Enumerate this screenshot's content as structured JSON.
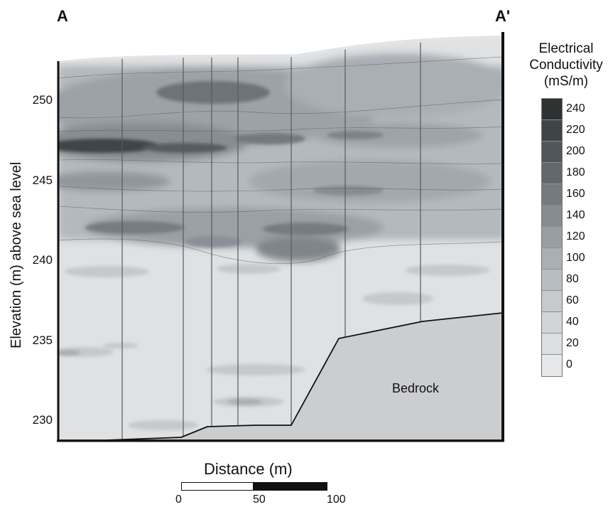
{
  "section_start": "A",
  "section_end": "A'",
  "y_axis": {
    "label": "Elevation (m) above sea level",
    "ticks": [
      "250",
      "245",
      "240",
      "235",
      "230"
    ]
  },
  "legend": {
    "title_line1": "Electrical",
    "title_line2": "Conductivity",
    "title_line3": "(mS/m)",
    "levels": [
      "240",
      "220",
      "200",
      "180",
      "160",
      "140",
      "120",
      "100",
      "80",
      "60",
      "40",
      "20",
      "0"
    ],
    "colors": [
      "#2d3232",
      "#3f4446",
      "#51565a",
      "#63686d",
      "#747a80",
      "#868c91",
      "#989ea3",
      "#a9afb4",
      "#b8bdc1",
      "#c6cacd",
      "#d2d5d8",
      "#dcdee0",
      "#e6e7e9"
    ]
  },
  "bedrock_label": "Bedrock",
  "x_axis": {
    "title": "Distance (m)",
    "scale_ticks": [
      "0",
      "50",
      "100"
    ]
  }
}
